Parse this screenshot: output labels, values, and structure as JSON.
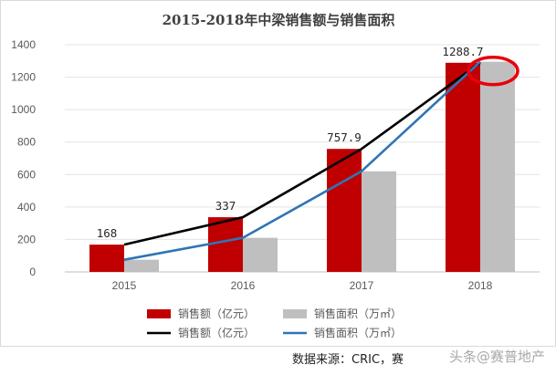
{
  "chart_data": {
    "type": "bar",
    "title": "2015-2018年中梁销售额与销售面积",
    "categories": [
      "2015",
      "2016",
      "2017",
      "2018"
    ],
    "ylim": [
      0,
      1400
    ],
    "yticks": [
      0,
      200,
      400,
      600,
      800,
      1000,
      1200,
      1400
    ],
    "grid": true,
    "legend_position": "bottom",
    "series": [
      {
        "name": "销售额（亿元）",
        "kind": "bar",
        "color": "#c00000",
        "values": [
          168,
          337,
          757.9,
          1288.7
        ],
        "labels": [
          "168",
          "337",
          "757.9",
          "1288.7"
        ]
      },
      {
        "name": "销售面积（万㎡）",
        "kind": "bar",
        "color": "#bfbfbf",
        "values": [
          75,
          210,
          620,
          1295
        ]
      },
      {
        "name": "销售额（亿元）",
        "kind": "line",
        "color": "#000000",
        "values": [
          168,
          337,
          757.9,
          1288.7
        ]
      },
      {
        "name": "销售面积（万㎡）",
        "kind": "line",
        "color": "#2e75b6",
        "values": [
          75,
          210,
          620,
          1295
        ]
      }
    ],
    "annotation": {
      "type": "ellipse",
      "color": "#e8000b",
      "category": "2018"
    }
  },
  "source_text": "数据来源：CRIC，赛",
  "watermark_text": "头条@赛普地产"
}
